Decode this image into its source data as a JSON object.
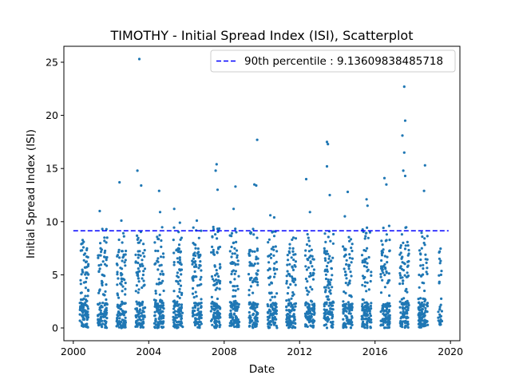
{
  "chart_data": {
    "type": "scatter",
    "title": "TIMOTHY - Initial Spread Index (ISI), Scatterplot",
    "xlabel": "Date",
    "ylabel": "Initial Spread Index (ISI)",
    "xlim": [
      1999.5,
      2020.5
    ],
    "ylim": [
      -1.2,
      26.5
    ],
    "x_ticks": [
      2000,
      2004,
      2008,
      2012,
      2016,
      2020
    ],
    "y_ticks": [
      0,
      5,
      10,
      15,
      20,
      25
    ],
    "legend_position": "top-right",
    "point_color": "#1f77b4",
    "reference_line": {
      "label": "90th percentile : 9.13609838485718",
      "value": 9.13609838485718,
      "x_range": [
        2000,
        2019.9
      ],
      "color": "#0000ff",
      "style": "dashed"
    },
    "seasons": [
      {
        "x_start": 2000.35,
        "x_end": 2000.8,
        "outliers": [
          [
            2000.55,
            8.1
          ],
          [
            2000.62,
            7.0
          ]
        ]
      },
      {
        "x_start": 2001.3,
        "x_end": 2001.8,
        "outliers": [
          [
            2001.4,
            11.0
          ],
          [
            2001.65,
            8.5
          ]
        ]
      },
      {
        "x_start": 2002.3,
        "x_end": 2002.8,
        "outliers": [
          [
            2002.45,
            13.7
          ],
          [
            2002.55,
            10.1
          ]
        ]
      },
      {
        "x_start": 2003.3,
        "x_end": 2003.8,
        "outliers": [
          [
            2003.5,
            25.3
          ],
          [
            2003.4,
            14.8
          ],
          [
            2003.6,
            13.4
          ]
        ]
      },
      {
        "x_start": 2004.3,
        "x_end": 2004.8,
        "outliers": [
          [
            2004.55,
            12.9
          ],
          [
            2004.6,
            10.9
          ]
        ]
      },
      {
        "x_start": 2005.3,
        "x_end": 2005.8,
        "outliers": [
          [
            2005.35,
            11.2
          ],
          [
            2005.65,
            9.9
          ]
        ]
      },
      {
        "x_start": 2006.3,
        "x_end": 2006.8,
        "outliers": [
          [
            2006.55,
            10.1
          ]
        ]
      },
      {
        "x_start": 2007.3,
        "x_end": 2007.8,
        "outliers": [
          [
            2007.6,
            15.4
          ],
          [
            2007.55,
            14.8
          ],
          [
            2007.65,
            13.0
          ]
        ]
      },
      {
        "x_start": 2008.3,
        "x_end": 2008.8,
        "outliers": [
          [
            2008.6,
            13.3
          ],
          [
            2008.5,
            11.2
          ]
        ]
      },
      {
        "x_start": 2009.3,
        "x_end": 2009.8,
        "outliers": [
          [
            2009.75,
            17.7
          ],
          [
            2009.6,
            13.5
          ],
          [
            2009.7,
            13.4
          ]
        ]
      },
      {
        "x_start": 2010.3,
        "x_end": 2010.8,
        "outliers": [
          [
            2010.45,
            10.6
          ],
          [
            2010.65,
            10.4
          ]
        ]
      },
      {
        "x_start": 2011.3,
        "x_end": 2011.8,
        "outliers": [
          [
            2011.6,
            8.3
          ]
        ]
      },
      {
        "x_start": 2012.3,
        "x_end": 2012.8,
        "outliers": [
          [
            2012.35,
            14.0
          ],
          [
            2012.55,
            10.9
          ]
        ]
      },
      {
        "x_start": 2013.3,
        "x_end": 2013.8,
        "outliers": [
          [
            2013.45,
            17.5
          ],
          [
            2013.5,
            17.3
          ],
          [
            2013.45,
            15.2
          ],
          [
            2013.6,
            12.5
          ]
        ]
      },
      {
        "x_start": 2014.3,
        "x_end": 2014.8,
        "outliers": [
          [
            2014.55,
            12.8
          ],
          [
            2014.4,
            10.5
          ]
        ]
      },
      {
        "x_start": 2015.3,
        "x_end": 2015.8,
        "outliers": [
          [
            2015.55,
            12.1
          ],
          [
            2015.6,
            11.5
          ]
        ]
      },
      {
        "x_start": 2016.3,
        "x_end": 2016.8,
        "outliers": [
          [
            2016.5,
            14.1
          ],
          [
            2016.6,
            13.5
          ],
          [
            2016.75,
            9.6
          ]
        ]
      },
      {
        "x_start": 2017.3,
        "x_end": 2017.8,
        "outliers": [
          [
            2017.55,
            22.7
          ],
          [
            2017.6,
            19.5
          ],
          [
            2017.45,
            18.1
          ],
          [
            2017.55,
            16.5
          ],
          [
            2017.5,
            14.8
          ],
          [
            2017.6,
            14.3
          ]
        ]
      },
      {
        "x_start": 2018.3,
        "x_end": 2018.8,
        "outliers": [
          [
            2018.65,
            15.3
          ],
          [
            2018.6,
            12.9
          ]
        ]
      },
      {
        "x_start": 2019.35,
        "x_end": 2019.55,
        "outliers": [
          [
            2019.4,
            7.1
          ],
          [
            2019.45,
            6.1
          ],
          [
            2019.5,
            5.0
          ]
        ]
      }
    ]
  }
}
